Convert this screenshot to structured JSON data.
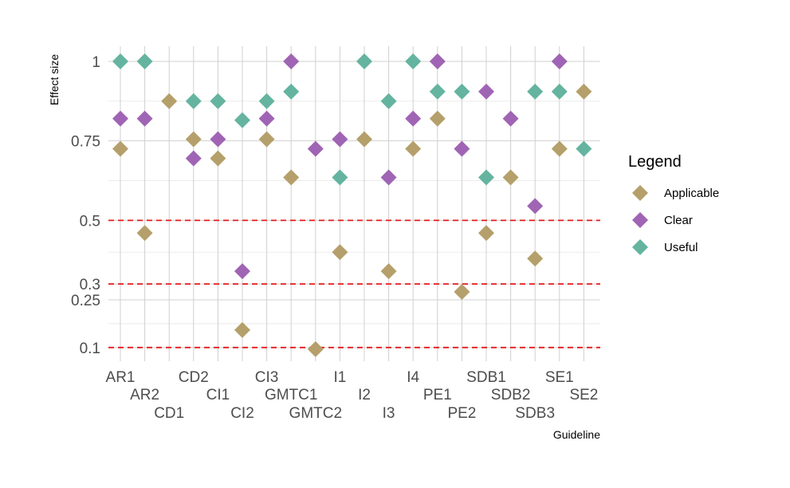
{
  "chart_data": {
    "type": "scatter",
    "xlabel": "Guideline",
    "ylabel": "Effect size",
    "categories": [
      "AR1",
      "AR2",
      "CD1",
      "CD2",
      "CI1",
      "CI2",
      "CI3",
      "GMTC1",
      "GMTC2",
      "I1",
      "I2",
      "I3",
      "I4",
      "PE1",
      "PE2",
      "SDB1",
      "SDB2",
      "SDB3",
      "SE1",
      "SE2"
    ],
    "yticks": [
      {
        "value": 0.1,
        "label": "0.1"
      },
      {
        "value": 0.25,
        "label": "0.25"
      },
      {
        "value": 0.3,
        "label": "0.3"
      },
      {
        "value": 0.5,
        "label": "0.5"
      },
      {
        "value": 0.75,
        "label": "0.75"
      },
      {
        "value": 1.0,
        "label": "1"
      }
    ],
    "ylim": [
      0.05,
      1.05
    ],
    "reference_lines": [
      0.1,
      0.3,
      0.5
    ],
    "reference_line_color": "#e41a1c",
    "grid": true,
    "legend": {
      "title": "Legend",
      "placement": "right",
      "entries": [
        {
          "name": "Applicable",
          "color": "#b5a06b"
        },
        {
          "name": "Clear",
          "color": "#a064b4"
        },
        {
          "name": "Useful",
          "color": "#64b4a0"
        }
      ]
    },
    "series": [
      {
        "name": "Applicable",
        "color": "#b5a06b",
        "values": [
          0.725,
          0.46,
          0.875,
          0.755,
          0.695,
          0.155,
          0.755,
          0.635,
          0.095,
          0.4,
          0.755,
          0.34,
          0.725,
          0.82,
          0.275,
          0.46,
          0.635,
          0.38,
          0.725,
          0.905
        ]
      },
      {
        "name": "Clear",
        "color": "#a064b4",
        "values": [
          0.82,
          0.82,
          null,
          0.695,
          0.755,
          0.34,
          0.82,
          1.0,
          0.725,
          0.755,
          null,
          0.635,
          0.82,
          1.0,
          0.725,
          0.905,
          0.82,
          0.545,
          1.0,
          null
        ]
      },
      {
        "name": "Useful",
        "color": "#64b4a0",
        "values": [
          1.0,
          1.0,
          null,
          0.875,
          0.875,
          0.815,
          0.875,
          0.905,
          null,
          0.635,
          1.0,
          0.875,
          1.0,
          0.905,
          0.905,
          0.635,
          null,
          0.905,
          0.905,
          0.725
        ]
      }
    ]
  }
}
